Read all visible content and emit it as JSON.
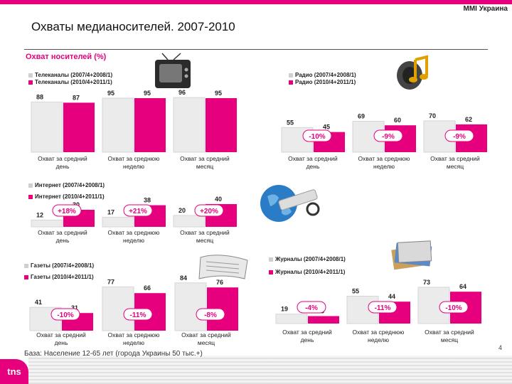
{
  "header": {
    "brand": "MMI Украина",
    "title": "Охваты медианосителей. 2007-2010",
    "subtitle": "Охват носителей (%)"
  },
  "footer": {
    "footnote": "База: Население 12-65 лет (города Украины 50 тыс.+)",
    "page_number": "4",
    "logo": "tns"
  },
  "colors": {
    "series_a": "#ebebeb",
    "series_b": "#e6007e",
    "accent": "#e6007e"
  },
  "chart_data": [
    {
      "type": "bar",
      "name": "tv",
      "series": [
        {
          "name": "Телеканалы (2007/4+2008/1)",
          "values": [
            88,
            95,
            96
          ]
        },
        {
          "name": "Телеканалы (2010/4+2011/1)",
          "values": [
            87,
            95,
            95
          ]
        }
      ],
      "categories": [
        "Охват за средний день",
        "Охват за среднюю неделю",
        "Охват за средний месяц"
      ],
      "changes": [
        "",
        "",
        ""
      ],
      "ylim": [
        0,
        100
      ]
    },
    {
      "type": "bar",
      "name": "radio",
      "series": [
        {
          "name": "Радио (2007/4+2008/1)",
          "values": [
            55,
            69,
            70
          ]
        },
        {
          "name": "Радио (2010/4+2011/1)",
          "values": [
            45,
            60,
            62
          ]
        }
      ],
      "categories": [
        "Охват за средний день",
        "Охват за среднюю неделю",
        "Охват за средний месяц"
      ],
      "changes": [
        "-10%",
        "-9%",
        "-9%"
      ],
      "ylim": [
        0,
        100
      ]
    },
    {
      "type": "bar",
      "name": "internet",
      "series": [
        {
          "name": "Интернет (2007/4+2008/1)",
          "values": [
            12,
            17,
            20
          ]
        },
        {
          "name": "Интернет (2010/4+2011/1)",
          "values": [
            30,
            38,
            40
          ]
        }
      ],
      "categories": [
        "Охват за средний день",
        "Охват за среднюю неделю",
        "Охват за средний месяц"
      ],
      "changes": [
        "+18%",
        "+21%",
        "+20%"
      ],
      "ylim": [
        0,
        100
      ]
    },
    {
      "type": "bar",
      "name": "newspapers",
      "series": [
        {
          "name": "Газеты (2007/4+2008/1)",
          "values": [
            41,
            77,
            84
          ]
        },
        {
          "name": "Газеты (2010/4+2011/1)",
          "values": [
            31,
            66,
            76
          ]
        }
      ],
      "categories": [
        "Охват за средний день",
        "Охват за среднюю неделю",
        "Охват за средний месяц"
      ],
      "changes": [
        "-10%",
        "-11%",
        "-8%"
      ],
      "ylim": [
        0,
        100
      ]
    },
    {
      "type": "bar",
      "name": "magazines",
      "series": [
        {
          "name": "Журналы (2007/4+2008/1)",
          "values": [
            19,
            55,
            73
          ]
        },
        {
          "name": "Журналы (2010/4+2011/1)",
          "values": [
            15,
            44,
            64
          ]
        }
      ],
      "categories": [
        "Охват за средний день",
        "Охват за среднюю неделю",
        "Охват за средний месяц"
      ],
      "changes": [
        "-4%",
        "-11%",
        "-10%"
      ],
      "ylim": [
        0,
        100
      ]
    }
  ]
}
